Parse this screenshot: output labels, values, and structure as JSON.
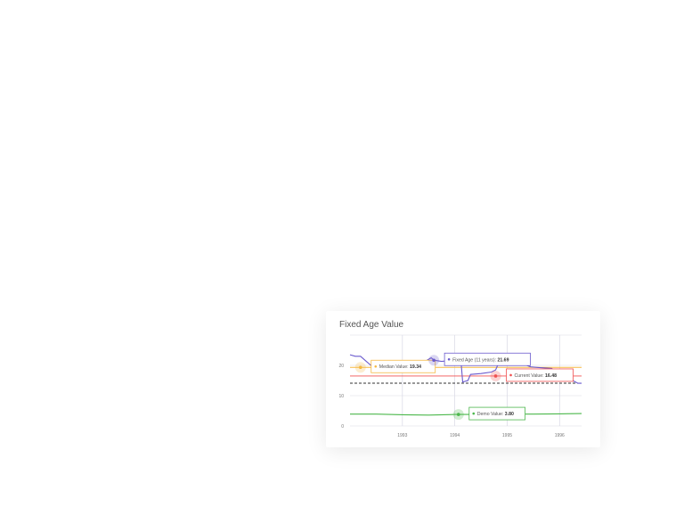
{
  "chart_data": {
    "type": "line",
    "title": "Fixed Age Value",
    "xlim": [
      1992.0,
      1996.42
    ],
    "ylim": [
      0,
      30
    ],
    "x_ticks": [
      "1993",
      "1994",
      "1995",
      "1996"
    ],
    "x_tick_values": [
      1993,
      1994,
      1995,
      1996
    ],
    "y_ticks": [
      "0",
      "10",
      "20"
    ],
    "y_tick_values": [
      0,
      10,
      20
    ],
    "grid": true,
    "series": [
      {
        "name": "Fixed Age (11 years)",
        "color": "#6a5acd",
        "x": [
          1992.0,
          1992.1,
          1992.2,
          1992.3,
          1992.4,
          1992.5,
          1993.0,
          1993.45,
          1993.55,
          1993.6,
          1993.75,
          1993.9,
          1994.05,
          1994.12,
          1994.15,
          1994.25,
          1994.3,
          1994.5,
          1994.7,
          1994.78,
          1994.83,
          1994.9,
          1995.1,
          1995.3,
          1995.45,
          1995.6,
          1995.85,
          1996.0,
          1996.15,
          1996.25,
          1996.35,
          1996.42
        ],
        "y": [
          23.5,
          23.0,
          23.0,
          21.5,
          20.0,
          19.6,
          20.5,
          21.5,
          22.5,
          21.7,
          21.3,
          21.6,
          21.0,
          21.0,
          14.5,
          15.0,
          17.0,
          17.3,
          17.8,
          18.5,
          20.5,
          21.5,
          21.2,
          20.5,
          19.5,
          19.3,
          19.0,
          17.0,
          16.0,
          15.0,
          14.1,
          14.1
        ]
      },
      {
        "name": "Demo Value",
        "color": "#4cb84c",
        "x": [
          1992.0,
          1992.5,
          1993.0,
          1993.5,
          1994.0,
          1994.5,
          1995.0,
          1995.5,
          1996.0,
          1996.42
        ],
        "y": [
          3.9,
          3.9,
          3.7,
          3.6,
          3.8,
          3.8,
          3.9,
          3.9,
          4.0,
          4.1
        ]
      }
    ],
    "reference_lines": [
      {
        "name": "Median Value",
        "value": 19.34,
        "color": "#f5b942",
        "style": "solid"
      },
      {
        "name": "Current Value",
        "value": 16.48,
        "color": "#f05050",
        "style": "solid"
      },
      {
        "value": 14.1,
        "color": "#333333",
        "style": "dashed"
      }
    ],
    "annotations": [
      {
        "label": "Median Value",
        "value": "19.34",
        "color": "#f5b942",
        "x": 1992.2,
        "y": 19.34
      },
      {
        "label": "Fixed Age (11 years)",
        "value": "21.69",
        "color": "#6a5acd",
        "x": 1993.6,
        "y": 21.69
      },
      {
        "label": "Current Value",
        "value": "16.48",
        "color": "#f05050",
        "x": 1994.78,
        "y": 16.48
      },
      {
        "label": "Demo Value",
        "value": "3.80",
        "color": "#4cb84c",
        "x": 1994.07,
        "y": 3.8
      }
    ]
  }
}
